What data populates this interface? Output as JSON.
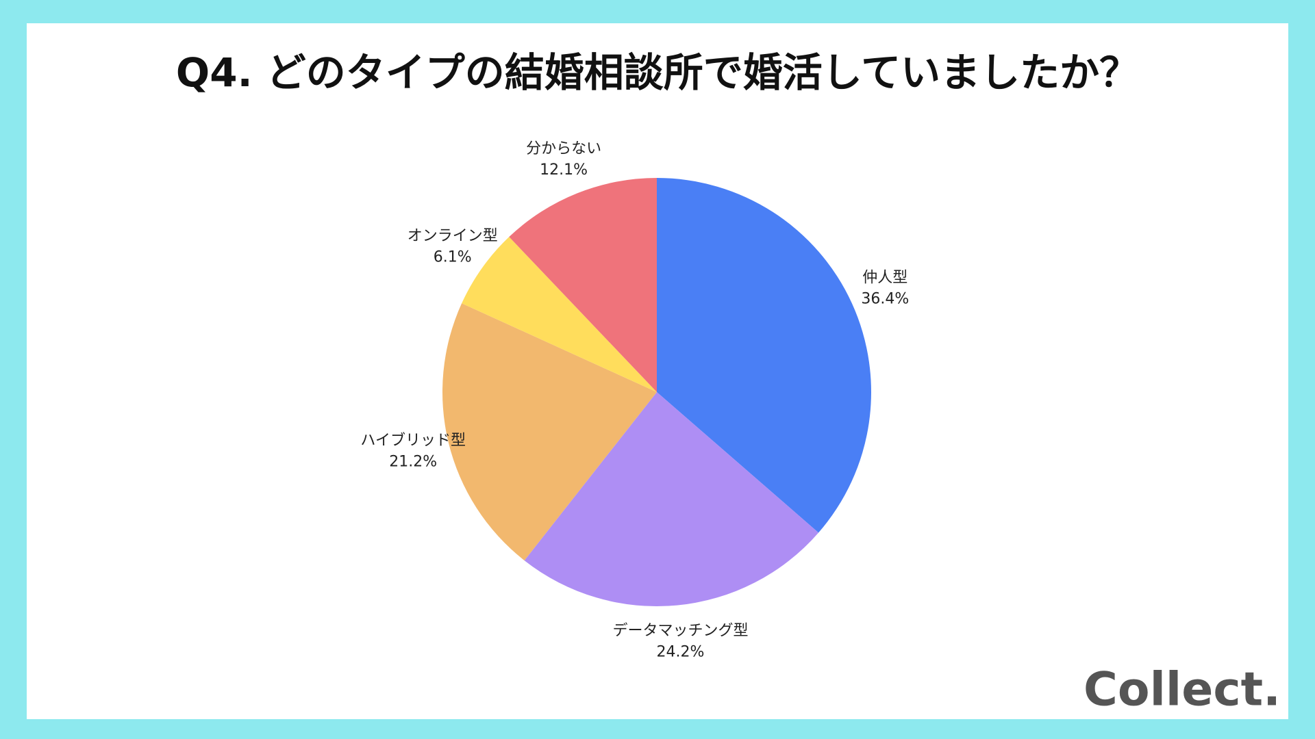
{
  "chart_data": {
    "type": "pie",
    "title": "Q4. どのタイプの結婚相談所で婚活していましたか？",
    "categories": [
      "仲人型",
      "データマッチング型",
      "ハイブリッド型",
      "オンライン型",
      "分からない"
    ],
    "values": [
      36.4,
      24.2,
      21.2,
      6.1,
      12.1
    ],
    "value_labels": [
      "36.4%",
      "24.2%",
      "21.2%",
      "6.1%",
      "12.1%"
    ],
    "colors": [
      "#4a7ff5",
      "#ae8ef4",
      "#f2b86e",
      "#ffdd5c",
      "#ef737b"
    ]
  },
  "brand": "Collect."
}
